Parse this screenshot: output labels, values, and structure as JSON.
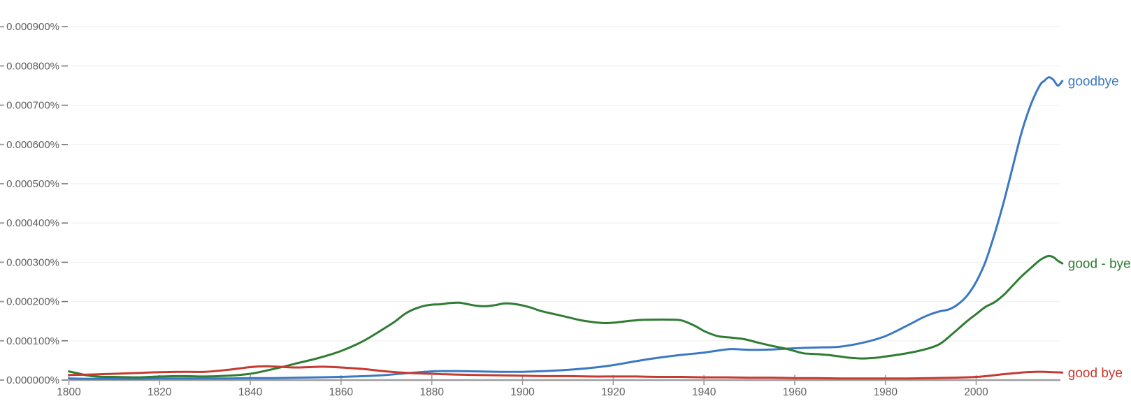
{
  "chart_data": {
    "type": "line",
    "title": "",
    "grid": true,
    "legend_position": "inline-right-of-line-end",
    "values_scale_note": "series point values are in units of 0.000001 percent (100 = 0.000100%)",
    "x_axis": {
      "range": [
        1800,
        2019
      ],
      "tick_years": [
        "1800",
        "1820",
        "1840",
        "1860",
        "1880",
        "1900",
        "1920",
        "1940",
        "1960",
        "1980",
        "2000"
      ]
    },
    "y_axis": {
      "range_percent": [
        0,
        0.0009
      ],
      "tick_labels": [
        "0.000900%",
        "0.000800%",
        "0.000700%",
        "0.000600%",
        "0.000500%",
        "0.000400%",
        "0.000300%",
        "0.000200%",
        "0.000100%",
        "0.000000%"
      ]
    },
    "series": [
      {
        "name": "goodbye",
        "color": "#3b78c4",
        "points": [
          [
            1800,
            4
          ],
          [
            1805,
            3
          ],
          [
            1810,
            3
          ],
          [
            1815,
            3
          ],
          [
            1820,
            4
          ],
          [
            1825,
            4
          ],
          [
            1830,
            4
          ],
          [
            1835,
            4
          ],
          [
            1840,
            5
          ],
          [
            1845,
            5
          ],
          [
            1850,
            6
          ],
          [
            1855,
            7
          ],
          [
            1860,
            8
          ],
          [
            1865,
            10
          ],
          [
            1870,
            13
          ],
          [
            1875,
            18
          ],
          [
            1880,
            22
          ],
          [
            1885,
            23
          ],
          [
            1890,
            22
          ],
          [
            1895,
            21
          ],
          [
            1900,
            21
          ],
          [
            1905,
            23
          ],
          [
            1910,
            26
          ],
          [
            1915,
            31
          ],
          [
            1920,
            38
          ],
          [
            1925,
            48
          ],
          [
            1930,
            57
          ],
          [
            1935,
            64
          ],
          [
            1940,
            70
          ],
          [
            1943,
            75
          ],
          [
            1946,
            79
          ],
          [
            1950,
            77
          ],
          [
            1955,
            78
          ],
          [
            1960,
            81
          ],
          [
            1965,
            83
          ],
          [
            1970,
            85
          ],
          [
            1975,
            95
          ],
          [
            1980,
            112
          ],
          [
            1985,
            140
          ],
          [
            1988,
            158
          ],
          [
            1990,
            168
          ],
          [
            1992,
            175
          ],
          [
            1994,
            180
          ],
          [
            1996,
            193
          ],
          [
            1998,
            215
          ],
          [
            2000,
            250
          ],
          [
            2002,
            300
          ],
          [
            2004,
            370
          ],
          [
            2006,
            450
          ],
          [
            2008,
            540
          ],
          [
            2010,
            630
          ],
          [
            2012,
            700
          ],
          [
            2014,
            750
          ],
          [
            2015,
            762
          ],
          [
            2016,
            771
          ],
          [
            2017,
            765
          ],
          [
            2018,
            750
          ],
          [
            2019,
            762
          ]
        ]
      },
      {
        "name": "good - bye",
        "color": "#2e7d32",
        "points": [
          [
            1800,
            22
          ],
          [
            1802,
            17
          ],
          [
            1804,
            12
          ],
          [
            1806,
            9
          ],
          [
            1808,
            8
          ],
          [
            1810,
            8
          ],
          [
            1815,
            7
          ],
          [
            1820,
            9
          ],
          [
            1825,
            10
          ],
          [
            1830,
            9
          ],
          [
            1835,
            11
          ],
          [
            1840,
            16
          ],
          [
            1845,
            28
          ],
          [
            1848,
            36
          ],
          [
            1850,
            42
          ],
          [
            1855,
            56
          ],
          [
            1860,
            74
          ],
          [
            1865,
            100
          ],
          [
            1870,
            135
          ],
          [
            1872,
            150
          ],
          [
            1874,
            168
          ],
          [
            1876,
            180
          ],
          [
            1878,
            188
          ],
          [
            1880,
            192
          ],
          [
            1882,
            193
          ],
          [
            1884,
            196
          ],
          [
            1886,
            197
          ],
          [
            1888,
            193
          ],
          [
            1890,
            189
          ],
          [
            1892,
            188
          ],
          [
            1894,
            191
          ],
          [
            1896,
            195
          ],
          [
            1898,
            194
          ],
          [
            1900,
            190
          ],
          [
            1902,
            184
          ],
          [
            1904,
            176
          ],
          [
            1907,
            168
          ],
          [
            1910,
            160
          ],
          [
            1913,
            152
          ],
          [
            1916,
            147
          ],
          [
            1918,
            145
          ],
          [
            1920,
            146
          ],
          [
            1923,
            150
          ],
          [
            1926,
            153
          ],
          [
            1929,
            154
          ],
          [
            1932,
            154
          ],
          [
            1935,
            152
          ],
          [
            1938,
            138
          ],
          [
            1940,
            125
          ],
          [
            1943,
            112
          ],
          [
            1946,
            108
          ],
          [
            1949,
            104
          ],
          [
            1952,
            95
          ],
          [
            1955,
            87
          ],
          [
            1958,
            80
          ],
          [
            1960,
            74
          ],
          [
            1962,
            68
          ],
          [
            1965,
            66
          ],
          [
            1968,
            63
          ],
          [
            1970,
            60
          ],
          [
            1972,
            57
          ],
          [
            1975,
            55
          ],
          [
            1978,
            57
          ],
          [
            1980,
            60
          ],
          [
            1983,
            65
          ],
          [
            1986,
            71
          ],
          [
            1989,
            79
          ],
          [
            1992,
            92
          ],
          [
            1995,
            120
          ],
          [
            1998,
            150
          ],
          [
            2000,
            168
          ],
          [
            2002,
            186
          ],
          [
            2004,
            198
          ],
          [
            2006,
            216
          ],
          [
            2008,
            240
          ],
          [
            2010,
            264
          ],
          [
            2012,
            285
          ],
          [
            2014,
            305
          ],
          [
            2015,
            312
          ],
          [
            2016,
            316
          ],
          [
            2017,
            313
          ],
          [
            2018,
            304
          ],
          [
            2019,
            297
          ]
        ]
      },
      {
        "name": "good bye",
        "color": "#c53a31",
        "points": [
          [
            1800,
            13
          ],
          [
            1805,
            14
          ],
          [
            1810,
            16
          ],
          [
            1815,
            18
          ],
          [
            1820,
            20
          ],
          [
            1825,
            21
          ],
          [
            1830,
            21
          ],
          [
            1835,
            26
          ],
          [
            1840,
            33
          ],
          [
            1843,
            35
          ],
          [
            1846,
            34
          ],
          [
            1850,
            32
          ],
          [
            1853,
            33
          ],
          [
            1856,
            34
          ],
          [
            1860,
            32
          ],
          [
            1865,
            28
          ],
          [
            1870,
            22
          ],
          [
            1875,
            18
          ],
          [
            1880,
            16
          ],
          [
            1885,
            14
          ],
          [
            1890,
            13
          ],
          [
            1895,
            12
          ],
          [
            1900,
            11
          ],
          [
            1905,
            10
          ],
          [
            1910,
            10
          ],
          [
            1915,
            9
          ],
          [
            1920,
            9
          ],
          [
            1925,
            9
          ],
          [
            1930,
            8
          ],
          [
            1935,
            8
          ],
          [
            1940,
            7
          ],
          [
            1945,
            7
          ],
          [
            1950,
            6
          ],
          [
            1955,
            6
          ],
          [
            1960,
            5
          ],
          [
            1965,
            5
          ],
          [
            1970,
            4
          ],
          [
            1975,
            4
          ],
          [
            1980,
            4
          ],
          [
            1985,
            4
          ],
          [
            1990,
            5
          ],
          [
            1995,
            6
          ],
          [
            2000,
            8
          ],
          [
            2003,
            11
          ],
          [
            2006,
            15
          ],
          [
            2009,
            18
          ],
          [
            2011,
            20
          ],
          [
            2013,
            21
          ],
          [
            2015,
            21
          ],
          [
            2017,
            20
          ],
          [
            2019,
            19
          ]
        ]
      }
    ],
    "styles": {
      "axis_color": "#9e9e9e",
      "grid_color": "#f1f1f1",
      "tick_color": "#757575",
      "tick_label_color": "#616161",
      "background": "#ffffff"
    }
  }
}
